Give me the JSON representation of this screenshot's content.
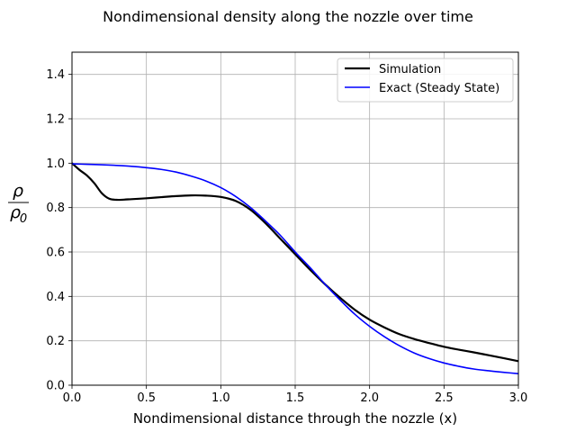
{
  "chart_data": {
    "type": "line",
    "title": "Nondimensional density along the nozzle over time",
    "xlabel": "Nondimensional distance through the nozzle (x)",
    "ylabel": "ρ/ρ0",
    "ylabel_parts": {
      "numerator": "ρ",
      "denominator": "ρ",
      "subscript": "0"
    },
    "xlim": [
      0.0,
      3.0
    ],
    "ylim": [
      0.0,
      1.5
    ],
    "grid": true,
    "legend_placement": "top-right",
    "x_ticks": [
      {
        "value": 0.0,
        "label": "0.0"
      },
      {
        "value": 0.5,
        "label": "0.5"
      },
      {
        "value": 1.0,
        "label": "1.0"
      },
      {
        "value": 1.5,
        "label": "1.5"
      },
      {
        "value": 2.0,
        "label": "2.0"
      },
      {
        "value": 2.5,
        "label": "2.5"
      },
      {
        "value": 3.0,
        "label": "3.0"
      }
    ],
    "y_ticks": [
      {
        "value": 0.0,
        "label": "0.0"
      },
      {
        "value": 0.2,
        "label": "0.2"
      },
      {
        "value": 0.4,
        "label": "0.4"
      },
      {
        "value": 0.6,
        "label": "0.6"
      },
      {
        "value": 0.8,
        "label": "0.8"
      },
      {
        "value": 1.0,
        "label": "1.0"
      },
      {
        "value": 1.2,
        "label": "1.2"
      },
      {
        "value": 1.4,
        "label": "1.4"
      }
    ],
    "series": [
      {
        "name": "Simulation",
        "color": "#000000",
        "x": [
          0.0,
          0.05,
          0.1,
          0.15,
          0.2,
          0.25,
          0.3,
          0.35,
          0.4,
          0.5,
          0.6,
          0.7,
          0.8,
          0.9,
          1.0,
          1.1,
          1.2,
          1.3,
          1.4,
          1.5,
          1.6,
          1.7,
          1.8,
          1.9,
          2.0,
          2.1,
          2.2,
          2.3,
          2.4,
          2.5,
          2.6,
          2.7,
          2.8,
          2.9,
          3.0
        ],
        "y": [
          1.0,
          0.97,
          0.945,
          0.91,
          0.865,
          0.84,
          0.835,
          0.836,
          0.838,
          0.842,
          0.847,
          0.852,
          0.855,
          0.854,
          0.848,
          0.83,
          0.79,
          0.73,
          0.66,
          0.59,
          0.52,
          0.455,
          0.395,
          0.34,
          0.295,
          0.26,
          0.23,
          0.208,
          0.19,
          0.173,
          0.16,
          0.148,
          0.135,
          0.122,
          0.108
        ]
      },
      {
        "name": "Exact (Steady State)",
        "color": "#0000ff",
        "x": [
          0.0,
          0.1,
          0.2,
          0.3,
          0.4,
          0.5,
          0.6,
          0.7,
          0.8,
          0.9,
          1.0,
          1.1,
          1.2,
          1.3,
          1.4,
          1.5,
          1.6,
          1.7,
          1.8,
          1.9,
          2.0,
          2.1,
          2.2,
          2.3,
          2.4,
          2.5,
          2.6,
          2.7,
          2.8,
          2.9,
          3.0
        ],
        "y": [
          0.997,
          0.995,
          0.993,
          0.99,
          0.986,
          0.98,
          0.972,
          0.96,
          0.942,
          0.92,
          0.89,
          0.85,
          0.8,
          0.74,
          0.675,
          0.6,
          0.53,
          0.455,
          0.385,
          0.32,
          0.265,
          0.218,
          0.178,
          0.145,
          0.12,
          0.1,
          0.085,
          0.073,
          0.065,
          0.058,
          0.052
        ]
      }
    ]
  }
}
